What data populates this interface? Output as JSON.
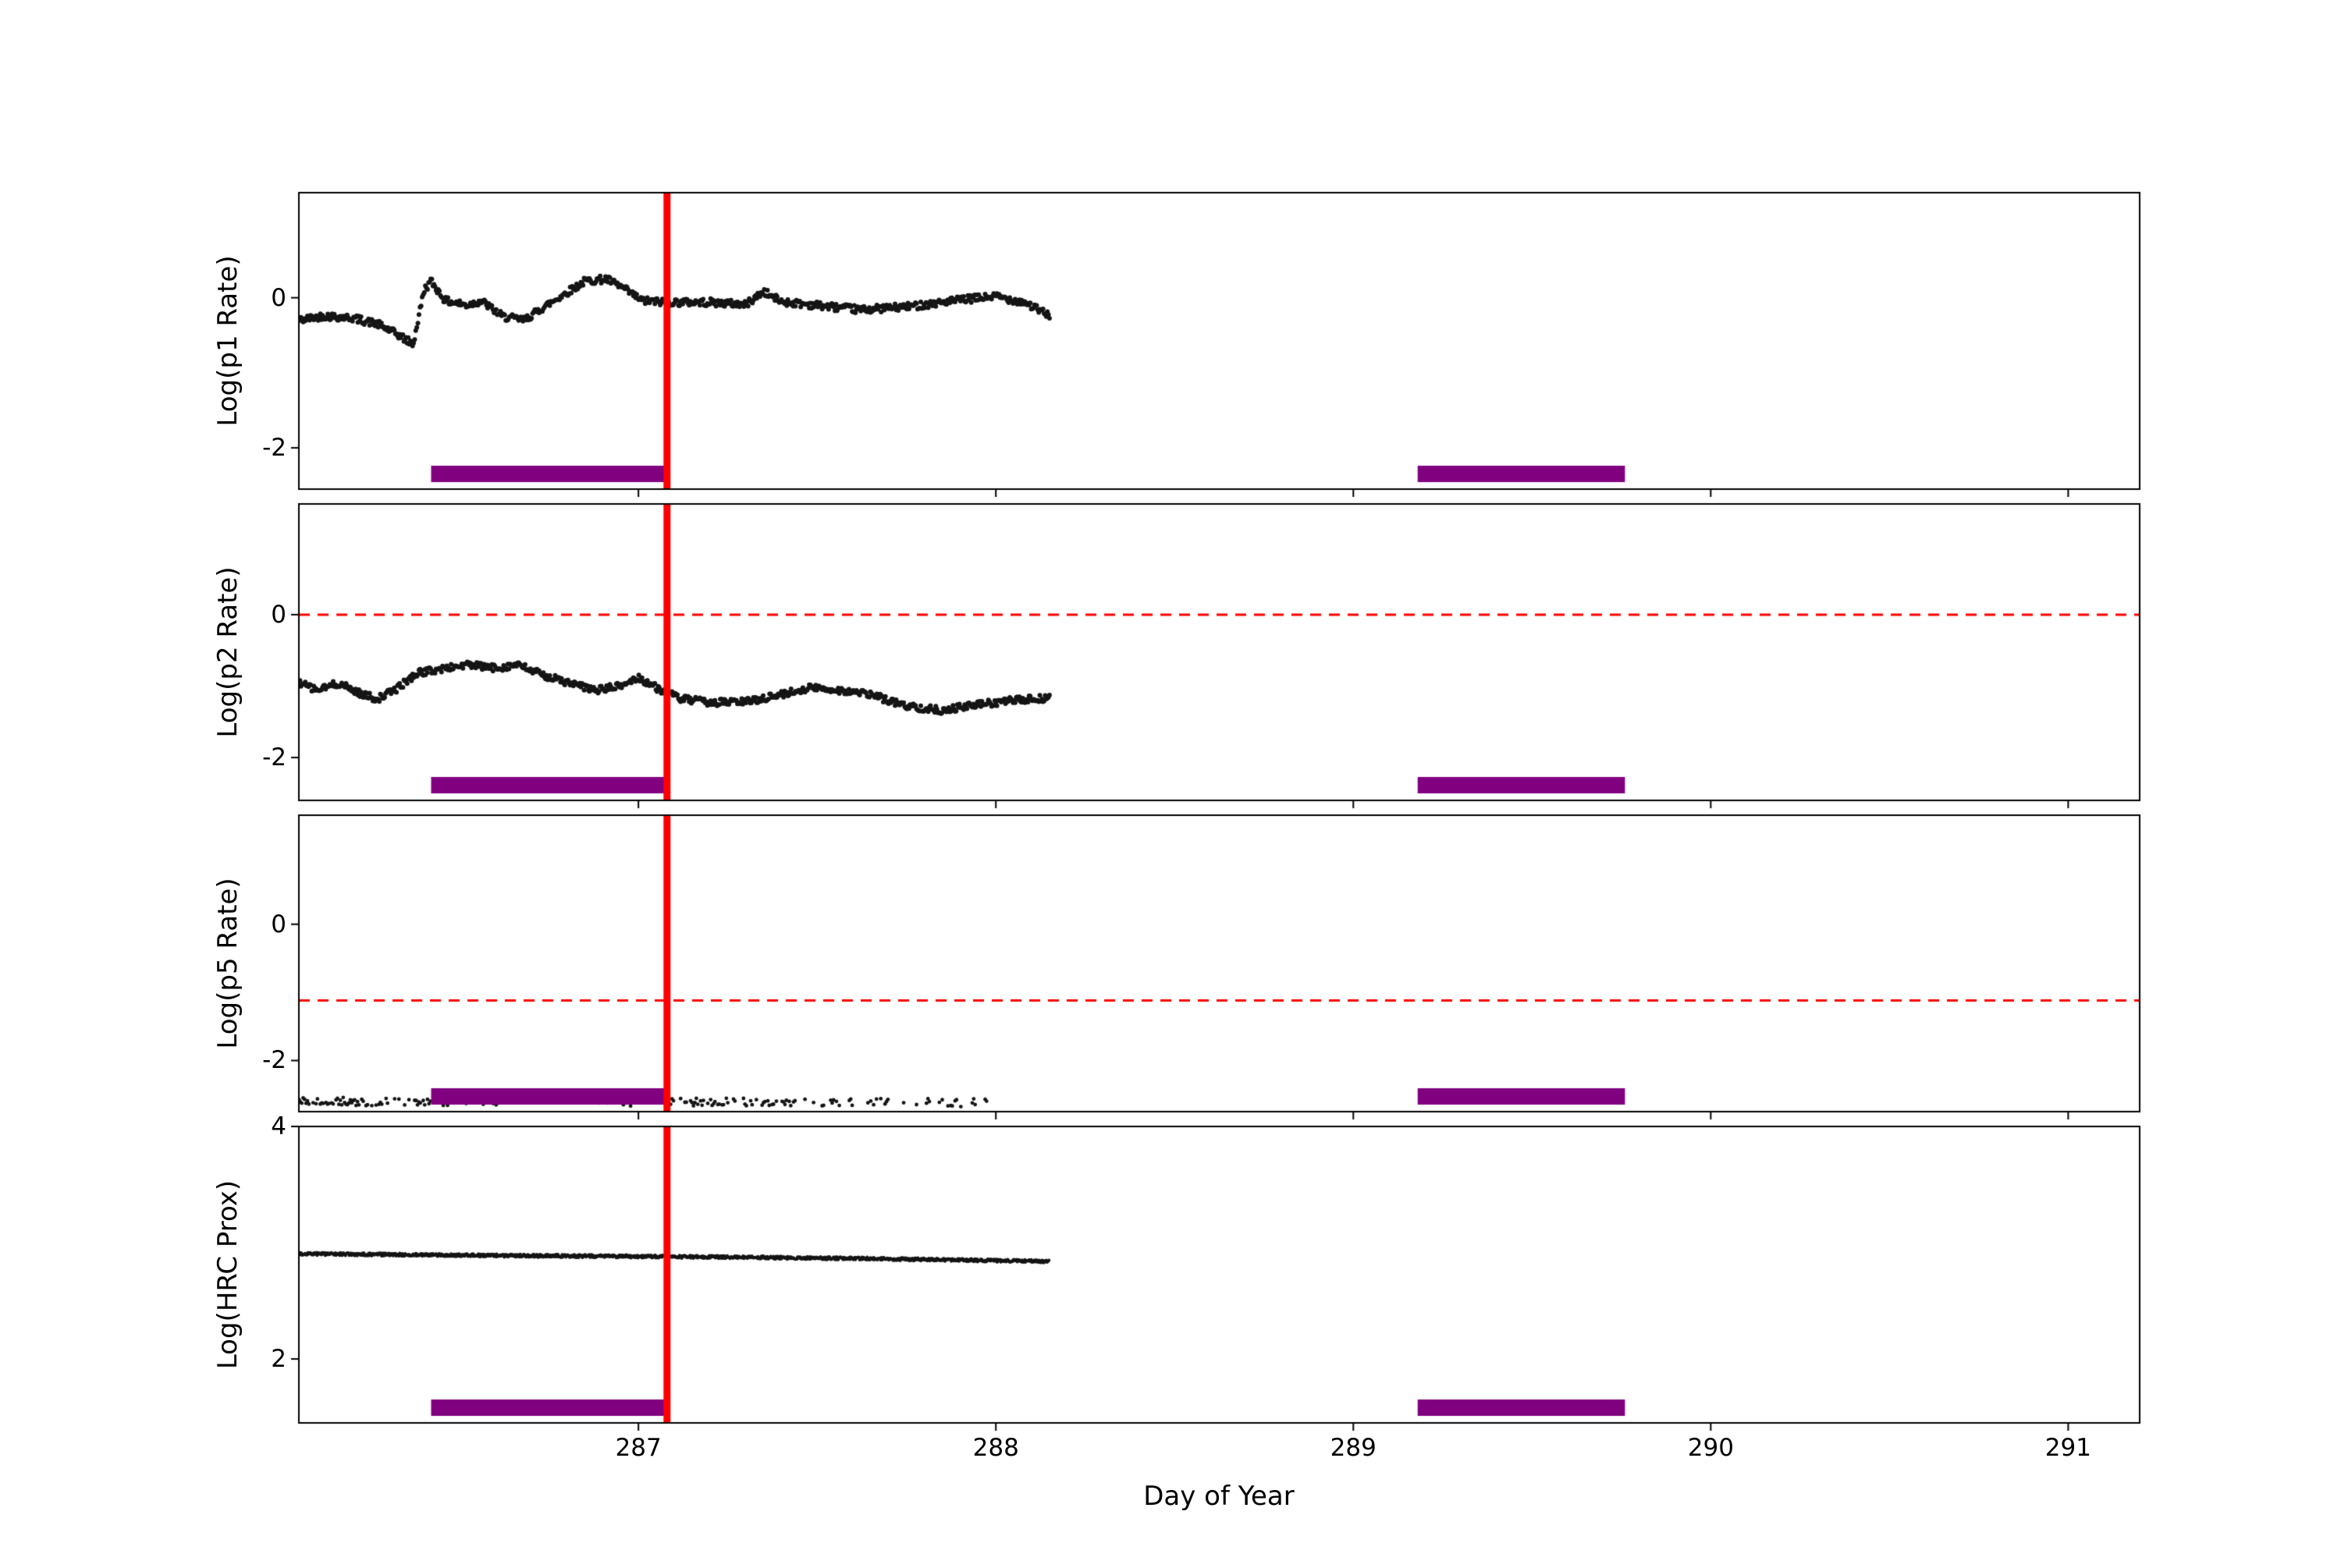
{
  "chart_data": {
    "type": "scatter",
    "title": "",
    "xlabel": "Day of Year",
    "x_range": [
      286.05,
      291.2
    ],
    "x_ticks": [
      287,
      288,
      289,
      290,
      291
    ],
    "x_tick_labels": [
      "287",
      "288",
      "289",
      "290",
      "291"
    ],
    "grid": false,
    "legend": null,
    "point_color": "#151515",
    "vline_x": 287.08,
    "vline_color": "#ff0000",
    "hline_color": "#ff0000",
    "band_color": "#800080",
    "bands": [
      [
        286.42,
        287.08
      ],
      [
        289.18,
        289.76
      ]
    ],
    "panels": [
      {
        "ylabel": "Log(p1 Rate)",
        "ylim": [
          -2.55,
          1.4
        ],
        "yticks": [
          0,
          -2
        ],
        "ytick_labels": [
          "0",
          "-2"
        ],
        "hline": null,
        "series": {
          "x_start": 286.05,
          "x_end": 288.15,
          "step": 0.003,
          "noise": 0.05,
          "radius": 3,
          "waypoints": [
            [
              286.05,
              -0.3
            ],
            [
              286.12,
              -0.24
            ],
            [
              286.2,
              -0.27
            ],
            [
              286.27,
              -0.35
            ],
            [
              286.33,
              -0.5
            ],
            [
              286.37,
              -0.62
            ],
            [
              286.4,
              0.1
            ],
            [
              286.42,
              0.22
            ],
            [
              286.46,
              -0.04
            ],
            [
              286.52,
              -0.1
            ],
            [
              286.56,
              -0.04
            ],
            [
              286.62,
              -0.25
            ],
            [
              286.68,
              -0.3
            ],
            [
              286.73,
              -0.14
            ],
            [
              286.79,
              0.04
            ],
            [
              286.85,
              0.22
            ],
            [
              286.91,
              0.25
            ],
            [
              286.96,
              0.12
            ],
            [
              287.01,
              -0.04
            ],
            [
              287.08,
              -0.06
            ],
            [
              287.2,
              -0.06
            ],
            [
              287.3,
              -0.09
            ],
            [
              287.35,
              0.08
            ],
            [
              287.4,
              -0.05
            ],
            [
              287.5,
              -0.1
            ],
            [
              287.62,
              -0.16
            ],
            [
              287.75,
              -0.12
            ],
            [
              287.9,
              -0.03
            ],
            [
              288.0,
              0.02
            ],
            [
              288.08,
              -0.06
            ],
            [
              288.15,
              -0.24
            ]
          ]
        }
      },
      {
        "ylabel": "Log(p2 Rate)",
        "ylim": [
          -2.6,
          1.55
        ],
        "yticks": [
          0,
          -2
        ],
        "ytick_labels": [
          "0",
          "-2"
        ],
        "hline": 0,
        "series": {
          "x_start": 286.05,
          "x_end": 288.15,
          "step": 0.003,
          "noise": 0.05,
          "radius": 3,
          "waypoints": [
            [
              286.05,
              -0.95
            ],
            [
              286.1,
              -1.06
            ],
            [
              286.16,
              -0.96
            ],
            [
              286.22,
              -1.1
            ],
            [
              286.27,
              -1.18
            ],
            [
              286.32,
              -1.05
            ],
            [
              286.38,
              -0.82
            ],
            [
              286.45,
              -0.76
            ],
            [
              286.52,
              -0.7
            ],
            [
              286.6,
              -0.75
            ],
            [
              286.66,
              -0.7
            ],
            [
              286.73,
              -0.84
            ],
            [
              286.8,
              -0.95
            ],
            [
              286.88,
              -1.06
            ],
            [
              286.95,
              -1.0
            ],
            [
              287.0,
              -0.88
            ],
            [
              287.06,
              -1.05
            ],
            [
              287.12,
              -1.18
            ],
            [
              287.2,
              -1.23
            ],
            [
              287.3,
              -1.22
            ],
            [
              287.4,
              -1.12
            ],
            [
              287.48,
              -1.02
            ],
            [
              287.55,
              -1.05
            ],
            [
              287.65,
              -1.12
            ],
            [
              287.75,
              -1.28
            ],
            [
              287.85,
              -1.34
            ],
            [
              287.95,
              -1.26
            ],
            [
              288.05,
              -1.2
            ],
            [
              288.15,
              -1.17
            ]
          ]
        }
      },
      {
        "ylabel": "Log(p5 Rate)",
        "ylim": [
          -2.75,
          1.6
        ],
        "yticks": [
          0,
          -2
        ],
        "ytick_labels": [
          "0",
          "-2"
        ],
        "hline": -1.12,
        "series": {
          "x_start": 286.05,
          "x_end": 287.98,
          "step": 0.004,
          "noise": 0.06,
          "radius": 2.4,
          "segments": [
            [
              286.05,
              286.3,
              0.85
            ],
            [
              286.3,
              286.55,
              0.4
            ],
            [
              286.55,
              287.05,
              0.12
            ],
            [
              287.05,
              287.45,
              0.45
            ],
            [
              287.45,
              287.75,
              0.3
            ],
            [
              287.75,
              287.98,
              0.2
            ]
          ],
          "waypoints": [
            [
              286.05,
              -2.6
            ],
            [
              288.0,
              -2.62
            ]
          ]
        }
      },
      {
        "ylabel": "Log(HRC Prox)",
        "ylim": [
          1.45,
          4.0
        ],
        "yticks": [
          4,
          2
        ],
        "ytick_labels": [
          "4",
          "2"
        ],
        "hline": null,
        "series": {
          "x_start": 286.05,
          "x_end": 288.15,
          "step": 0.0015,
          "noise": 0.013,
          "radius": 2,
          "waypoints": [
            [
              286.05,
              2.905
            ],
            [
              286.6,
              2.89
            ],
            [
              287.1,
              2.88
            ],
            [
              287.6,
              2.865
            ],
            [
              288.15,
              2.84
            ]
          ]
        }
      }
    ]
  }
}
